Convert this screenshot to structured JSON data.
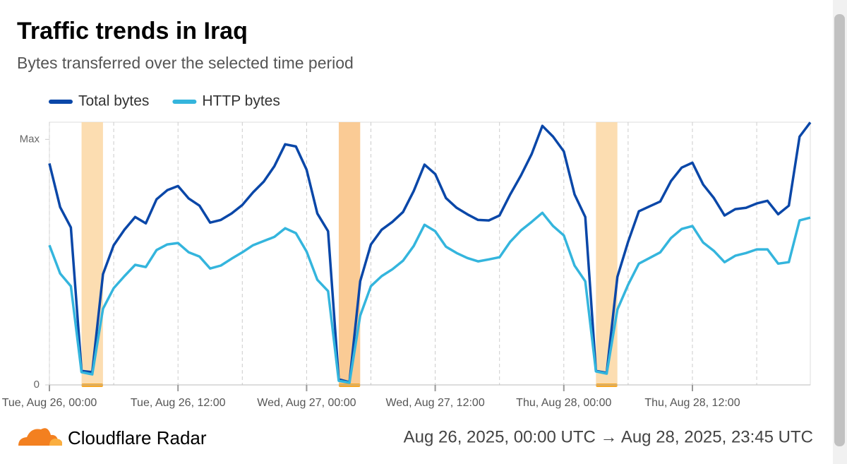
{
  "chart_data": {
    "type": "line",
    "title": "Traffic trends in Iraq",
    "subtitle": "Bytes transferred over the selected time period",
    "x": [
      "2025-08-26T00:00",
      "2025-08-26T01:00",
      "2025-08-26T02:00",
      "2025-08-26T03:00",
      "2025-08-26T04:00",
      "2025-08-26T05:00",
      "2025-08-26T06:00",
      "2025-08-26T07:00",
      "2025-08-26T08:00",
      "2025-08-26T09:00",
      "2025-08-26T10:00",
      "2025-08-26T11:00",
      "2025-08-26T12:00",
      "2025-08-26T13:00",
      "2025-08-26T14:00",
      "2025-08-26T15:00",
      "2025-08-26T16:00",
      "2025-08-26T17:00",
      "2025-08-26T18:00",
      "2025-08-26T19:00",
      "2025-08-26T20:00",
      "2025-08-26T21:00",
      "2025-08-26T22:00",
      "2025-08-26T23:00",
      "2025-08-27T00:00",
      "2025-08-27T01:00",
      "2025-08-27T02:00",
      "2025-08-27T03:00",
      "2025-08-27T04:00",
      "2025-08-27T05:00",
      "2025-08-27T06:00",
      "2025-08-27T07:00",
      "2025-08-27T08:00",
      "2025-08-27T09:00",
      "2025-08-27T10:00",
      "2025-08-27T11:00",
      "2025-08-27T12:00",
      "2025-08-27T13:00",
      "2025-08-27T14:00",
      "2025-08-27T15:00",
      "2025-08-27T16:00",
      "2025-08-27T17:00",
      "2025-08-27T18:00",
      "2025-08-27T19:00",
      "2025-08-27T20:00",
      "2025-08-27T21:00",
      "2025-08-27T22:00",
      "2025-08-27T23:00",
      "2025-08-28T00:00",
      "2025-08-28T01:00",
      "2025-08-28T02:00",
      "2025-08-28T03:00",
      "2025-08-28T04:00",
      "2025-08-28T05:00",
      "2025-08-28T06:00",
      "2025-08-28T07:00",
      "2025-08-28T08:00",
      "2025-08-28T09:00",
      "2025-08-28T10:00",
      "2025-08-28T11:00",
      "2025-08-28T12:00",
      "2025-08-28T13:00",
      "2025-08-28T14:00",
      "2025-08-28T15:00",
      "2025-08-28T16:00",
      "2025-08-28T17:00",
      "2025-08-28T18:00",
      "2025-08-28T19:00",
      "2025-08-28T20:00",
      "2025-08-28T21:00",
      "2025-08-28T22:00",
      "2025-08-28T23:00"
    ],
    "series": [
      {
        "name": "Total bytes",
        "color": "#0a47a8",
        "values": [
          90.2,
          72.4,
          64.1,
          5.7,
          5.2,
          45.1,
          56.9,
          63.2,
          68.4,
          65.8,
          75.6,
          79.3,
          81.0,
          75.9,
          73.0,
          66.1,
          67.2,
          69.8,
          73.3,
          78.4,
          82.8,
          89.1,
          98.0,
          97.1,
          87.6,
          69.8,
          62.6,
          2.3,
          1.1,
          42.2,
          57.2,
          63.2,
          66.4,
          70.4,
          79.0,
          89.7,
          85.9,
          76.1,
          72.1,
          69.5,
          67.2,
          67.0,
          69.0,
          77.6,
          85.3,
          94.0,
          105.5,
          101.1,
          95.1,
          77.6,
          68.4,
          5.7,
          4.9,
          44.0,
          58.3,
          70.7,
          72.7,
          74.7,
          83.0,
          88.5,
          90.5,
          81.6,
          76.1,
          69.0,
          71.6,
          72.1,
          73.9,
          75.0,
          69.5,
          73.0,
          101.1,
          106.9
        ]
      },
      {
        "name": "HTTP bytes",
        "color": "#34b5dd",
        "values": [
          56.9,
          45.4,
          40.2,
          5.2,
          4.3,
          31.0,
          39.4,
          44.3,
          48.9,
          48.0,
          54.9,
          57.2,
          57.8,
          54.0,
          52.3,
          47.4,
          48.6,
          51.4,
          54.0,
          56.9,
          58.6,
          60.3,
          63.8,
          61.8,
          54.3,
          42.8,
          38.2,
          1.7,
          0.9,
          28.2,
          40.2,
          44.3,
          47.1,
          50.6,
          56.6,
          65.2,
          62.6,
          56.3,
          53.7,
          51.7,
          50.3,
          51.1,
          52.0,
          58.3,
          62.9,
          66.4,
          70.1,
          64.7,
          60.9,
          48.6,
          42.2,
          5.5,
          4.6,
          30.7,
          40.8,
          49.4,
          51.7,
          54.0,
          59.8,
          63.5,
          64.7,
          58.0,
          54.6,
          50.0,
          52.6,
          53.7,
          55.2,
          55.2,
          49.4,
          50.0,
          67.0,
          68.1
        ]
      }
    ],
    "xlim": [
      "2025-08-26T00:00",
      "2025-08-28T23:00"
    ],
    "xticks": [
      {
        "value": "2025-08-26T00:00",
        "label": "Tue, Aug 26, 00:00"
      },
      {
        "value": "2025-08-26T12:00",
        "label": "Tue, Aug 26, 12:00"
      },
      {
        "value": "2025-08-27T00:00",
        "label": "Wed, Aug 27, 00:00"
      },
      {
        "value": "2025-08-27T12:00",
        "label": "Wed, Aug 27, 12:00"
      },
      {
        "value": "2025-08-28T00:00",
        "label": "Thu, Aug 28, 00:00"
      },
      {
        "value": "2025-08-28T12:00",
        "label": "Thu, Aug 28, 12:00"
      }
    ],
    "xminorticks": [
      "2025-08-26T06:00",
      "2025-08-26T18:00",
      "2025-08-27T06:00",
      "2025-08-27T18:00",
      "2025-08-28T06:00",
      "2025-08-28T18:00"
    ],
    "ylim": [
      0,
      107
    ],
    "yticks": [
      0,
      {
        "value": 100,
        "label": "Max"
      }
    ],
    "annotations": [
      {
        "start": "2025-08-26T03:00",
        "end": "2025-08-26T05:00",
        "color": "#fcd9a8"
      },
      {
        "start": "2025-08-27T03:00",
        "end": "2025-08-27T05:00",
        "color": "#f9c58a"
      },
      {
        "start": "2025-08-28T03:00",
        "end": "2025-08-28T05:00",
        "color": "#fcd9a8"
      }
    ],
    "grid": true,
    "legend": "top-left"
  },
  "footer": {
    "brand": "Cloudflare Radar",
    "date_range": "Aug 26, 2025, 00:00 UTC → Aug 28, 2025, 23:45 UTC"
  }
}
